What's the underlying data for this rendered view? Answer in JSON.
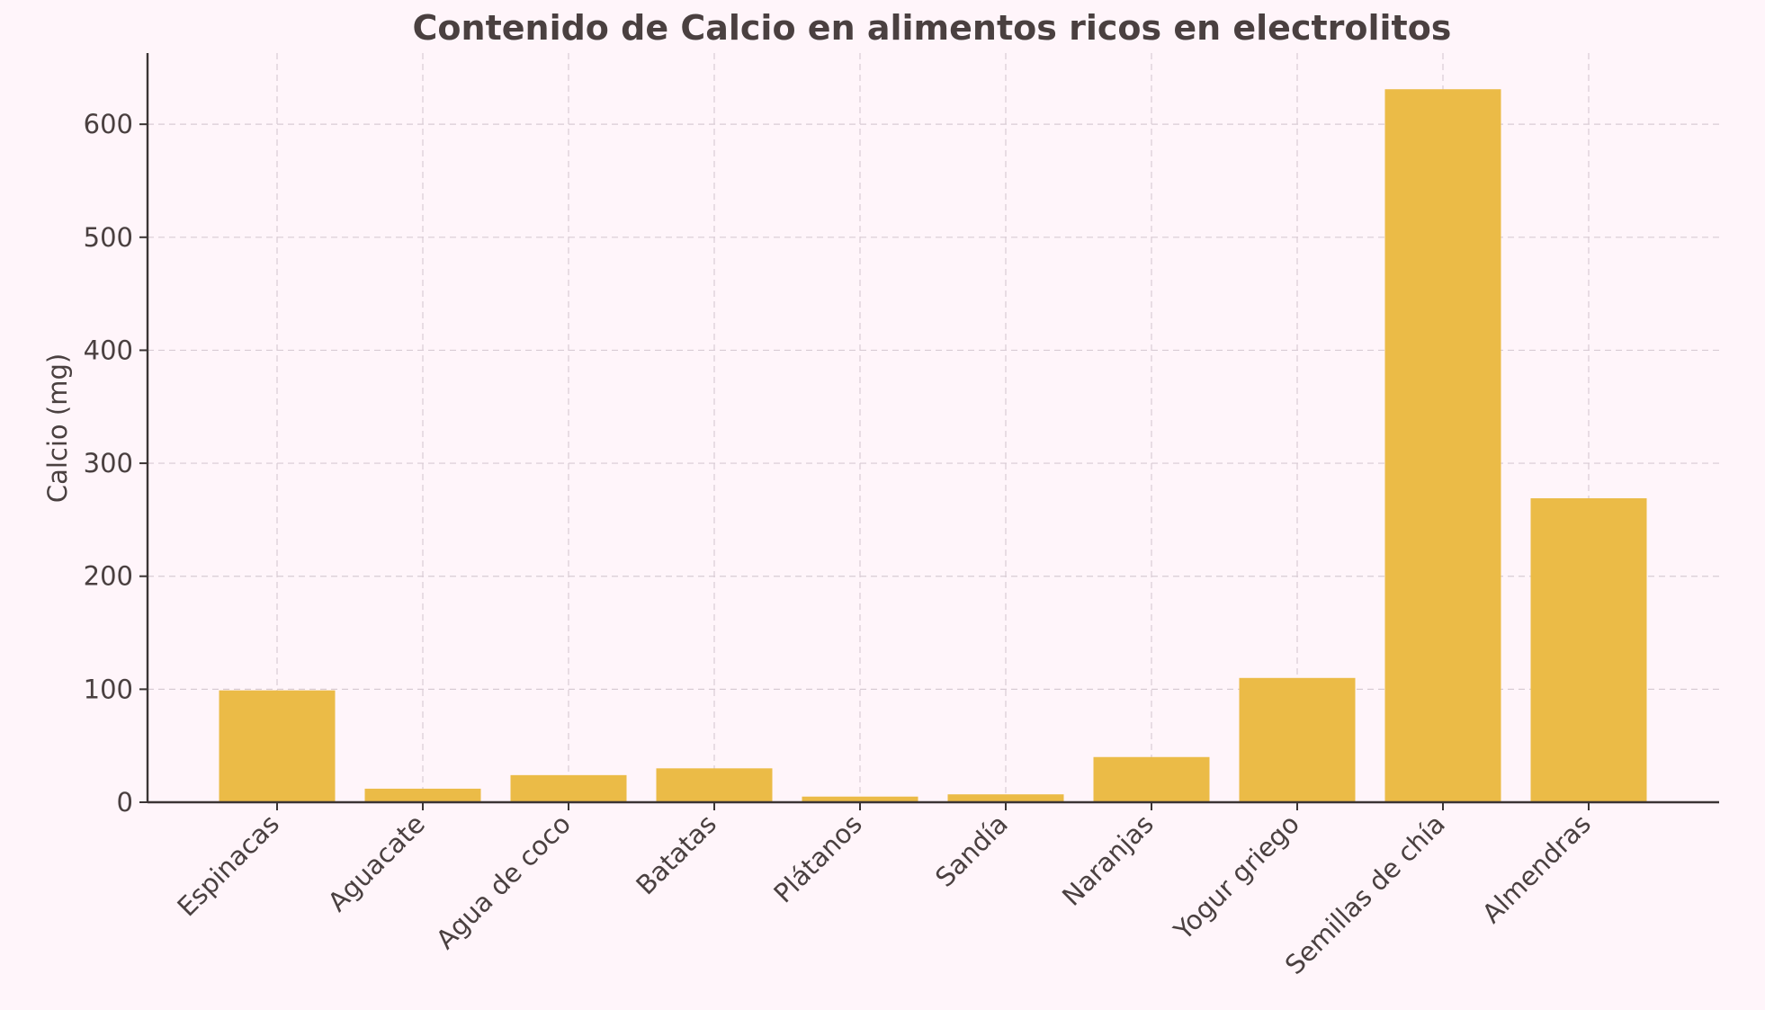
{
  "chart_data": {
    "type": "bar",
    "title": "Contenido de Calcio en alimentos ricos en electrolitos",
    "xlabel": "",
    "ylabel": "Calcio (mg)",
    "categories": [
      "Espinacas",
      "Aguacate",
      "Agua de coco",
      "Batatas",
      "Plátanos",
      "Sandía",
      "Naranjas",
      "Yogur griego",
      "Semillas de chía",
      "Almendras"
    ],
    "values": [
      99,
      12,
      24,
      30,
      5,
      7,
      40,
      110,
      631,
      269
    ],
    "ylim": [
      0,
      663
    ],
    "yticks": [
      0,
      100,
      200,
      300,
      400,
      500,
      600
    ],
    "grid": true,
    "legend": "none",
    "bar_color": "#ebbb47",
    "background_color": "#fff5fa",
    "text_color": "#4a4040"
  }
}
